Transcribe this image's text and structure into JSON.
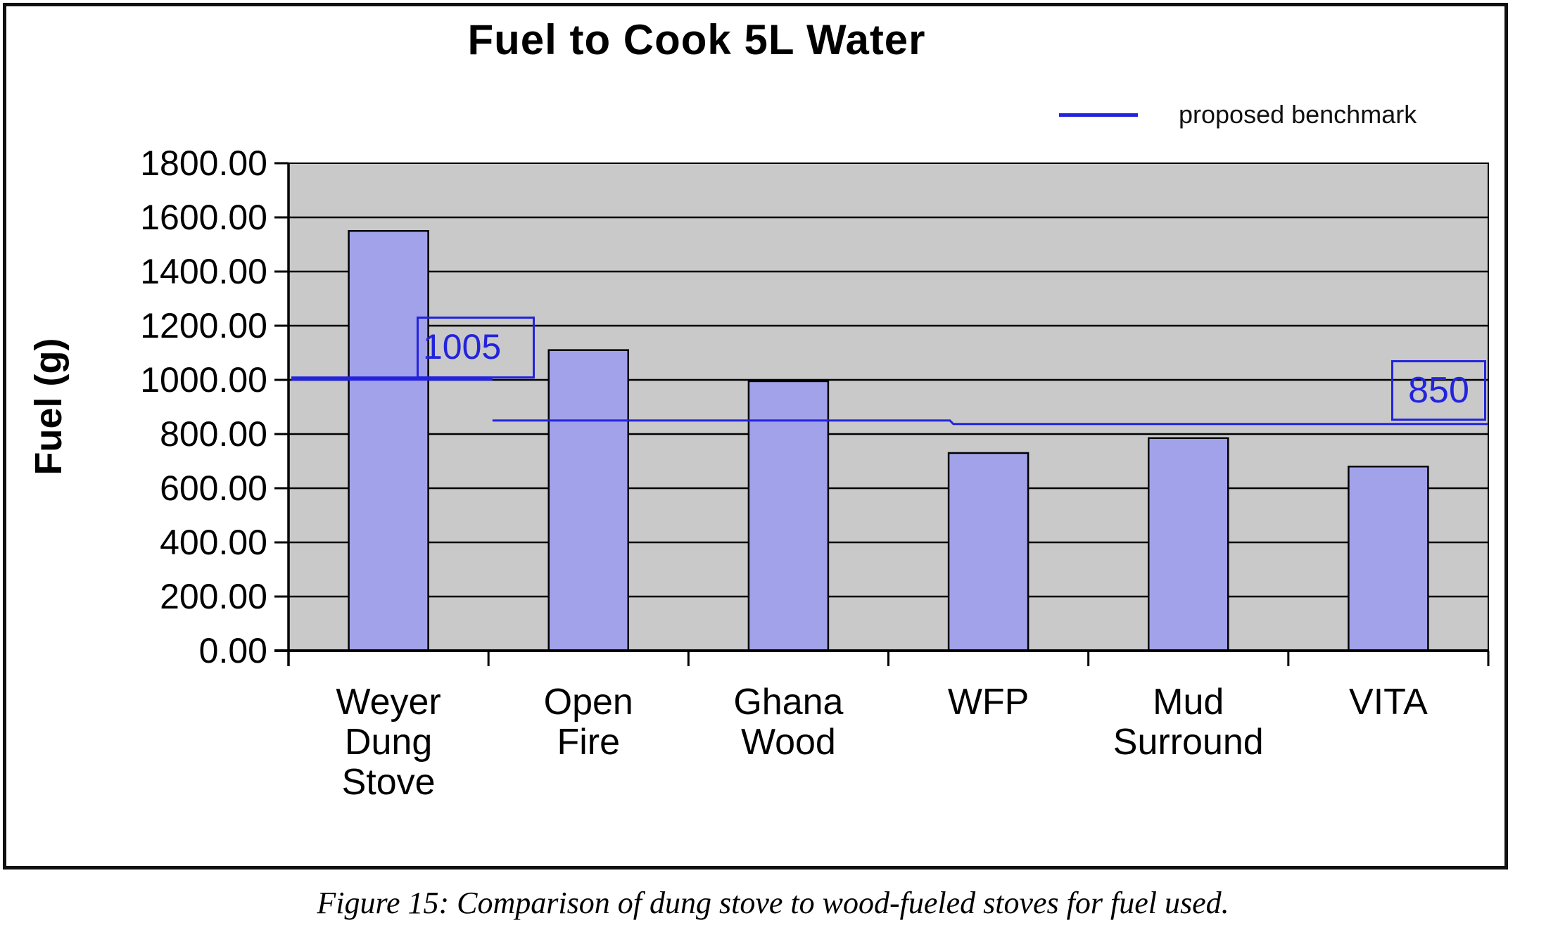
{
  "figure": {
    "caption": "Figure 15: Comparison of dung stove to wood-fueled stoves for fuel used."
  },
  "chart_data": {
    "type": "bar",
    "title": "Fuel to Cook 5L Water",
    "ylabel": "Fuel (g)",
    "xlabel": "",
    "ylim": [
      0,
      1800
    ],
    "ytick_step": 200,
    "ytick_labels": [
      "0.00",
      "200.00",
      "400.00",
      "600.00",
      "800.00",
      "1000.00",
      "1200.00",
      "1400.00",
      "1600.00",
      "1800.00"
    ],
    "categories": [
      "Weyer Dung Stove",
      "Open Fire",
      "Ghana Wood",
      "WFP",
      "Mud Surround",
      "VITA"
    ],
    "values": [
      1550,
      1110,
      995,
      730,
      785,
      680
    ],
    "grid": true,
    "legend": {
      "position": "top-right",
      "entries": [
        {
          "label": "proposed benchmark",
          "type": "line",
          "color": "#2323dd"
        }
      ]
    },
    "benchmarks": [
      {
        "label": "1005",
        "value": 1005,
        "x_start_frac": 0.0,
        "x_end_frac": 0.17,
        "thickness": 6
      },
      {
        "label": "850",
        "value": 850,
        "x_start_frac": 0.17,
        "x_end_frac": 1.0,
        "thickness": 3
      }
    ],
    "colors": {
      "bar_fill": "#a2a2ea",
      "bar_border": "#000000",
      "plot_bg": "#c9c9c9",
      "grid": "#000000",
      "benchmark": "#2323dd",
      "text": "#000000"
    }
  }
}
